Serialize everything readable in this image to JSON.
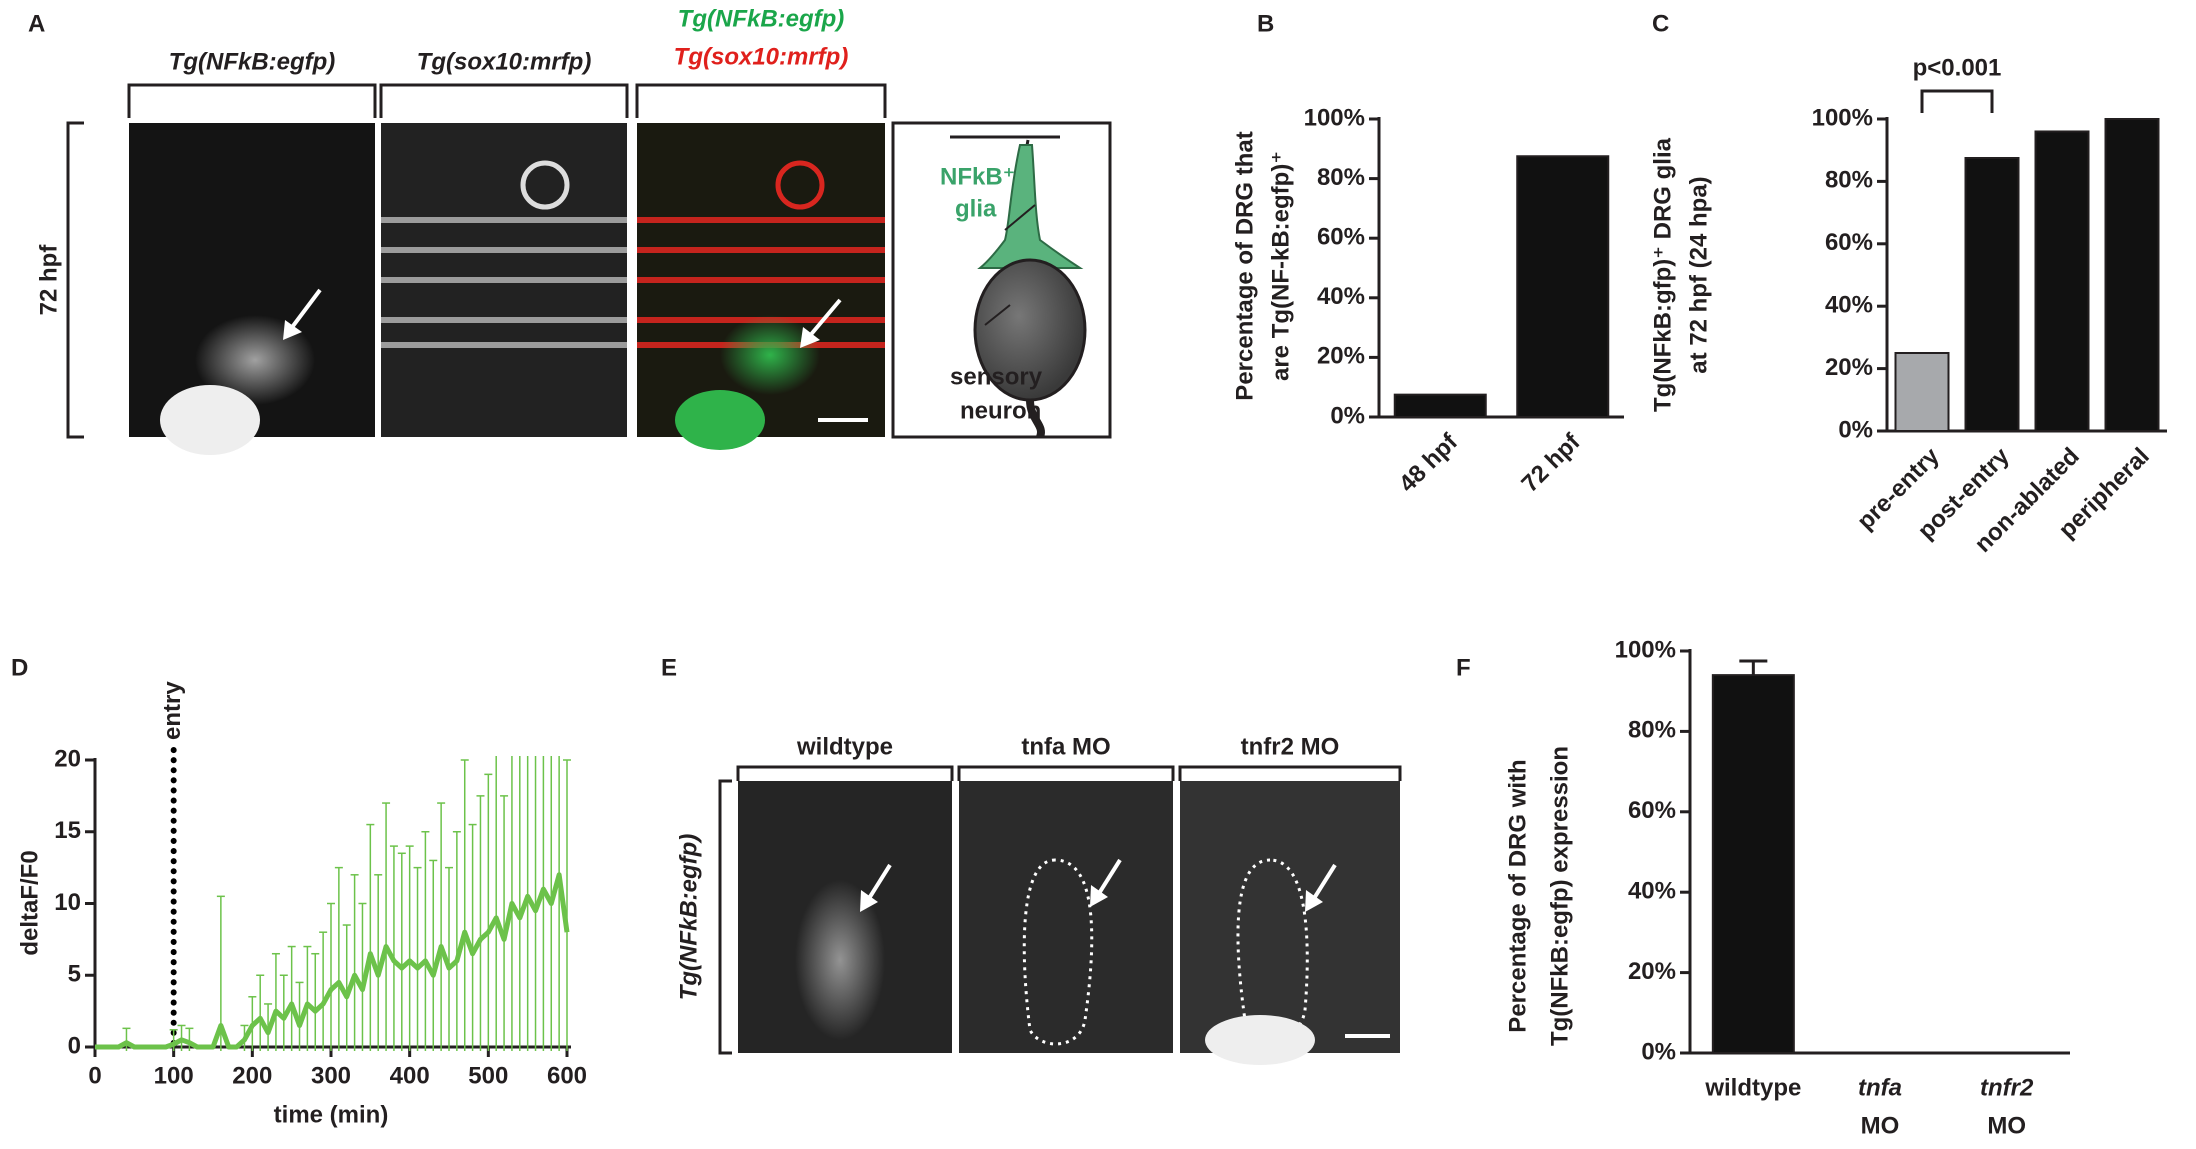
{
  "figure_a": {
    "label": "A",
    "headers": [
      "Tg(NFkB:egfp)",
      "Tg(sox10:mrfp)"
    ],
    "merge_header": [
      "Tg(NFkB:egfp)",
      "Tg(sox10:mrfp)"
    ],
    "row_label": "72 hpf",
    "glia_label": [
      "NFkB⁺",
      "glia"
    ],
    "neuron_label": [
      "sensory",
      "neuron"
    ]
  },
  "figure_e": {
    "label": "E",
    "headers": [
      "wildtype",
      "tnfa MO",
      "tnfr2 MO"
    ],
    "row_label": "Tg(NFkB:egfp)"
  },
  "chart_data": [
    {
      "panel": "B",
      "type": "bar",
      "ylabel": [
        "Percentage of DRG that",
        "are Tg(NF-kB:egfp)⁺"
      ],
      "categories": [
        "48 hpf",
        "72 hpf"
      ],
      "values": [
        7.5,
        87.5
      ],
      "color": "#111111",
      "ylim": [
        0,
        100
      ],
      "yticks": [
        {
          "value": 0,
          "label": "0%"
        },
        {
          "value": 20,
          "label": "20%"
        },
        {
          "value": 40,
          "label": "40%"
        },
        {
          "value": 60,
          "label": "60%"
        },
        {
          "value": 80,
          "label": "80%"
        },
        {
          "value": 100,
          "label": "100%"
        }
      ]
    },
    {
      "panel": "C",
      "type": "bar",
      "ylabel": [
        "Tg(NFkB:gfp)⁺ DRG glia",
        "at 72 hpf (24 hpa)"
      ],
      "categories": [
        "pre-entry",
        "post-entry",
        "non-ablated",
        "peripheral"
      ],
      "values": [
        25,
        87.5,
        96,
        100
      ],
      "colors": [
        "#a7a9ac",
        "#111111",
        "#111111",
        "#111111"
      ],
      "ylim": [
        0,
        100
      ],
      "yticks": [
        {
          "value": 0,
          "label": "0%"
        },
        {
          "value": 20,
          "label": "20%"
        },
        {
          "value": 40,
          "label": "40%"
        },
        {
          "value": 60,
          "label": "60%"
        },
        {
          "value": 80,
          "label": "80%"
        },
        {
          "value": 100,
          "label": "100%"
        }
      ],
      "annotation": {
        "text": "p<0.001",
        "between": [
          0,
          1
        ]
      }
    },
    {
      "panel": "D",
      "type": "line",
      "xlabel": "time (min)",
      "ylabel": "deltaF/F0",
      "x": [
        0,
        10,
        20,
        30,
        40,
        50,
        60,
        70,
        80,
        90,
        100,
        110,
        120,
        130,
        140,
        150,
        160,
        170,
        180,
        190,
        200,
        210,
        220,
        230,
        240,
        250,
        260,
        270,
        280,
        290,
        300,
        310,
        320,
        330,
        340,
        350,
        360,
        370,
        380,
        390,
        400,
        410,
        420,
        430,
        440,
        450,
        460,
        470,
        480,
        490,
        500,
        510,
        520,
        530,
        540,
        550,
        560,
        570,
        580,
        590,
        600
      ],
      "series": [
        {
          "color": "#6cc24a",
          "values": [
            0,
            0,
            0,
            0,
            0.3,
            0,
            0,
            0,
            0,
            0,
            0.2,
            0.5,
            0.3,
            0,
            0,
            0,
            1.5,
            0,
            0,
            0.5,
            1.5,
            2,
            1,
            2.5,
            2,
            3,
            1.5,
            3,
            2.5,
            3,
            4,
            4.5,
            3.5,
            5,
            4,
            6.5,
            5,
            7,
            6,
            5.5,
            6,
            5.5,
            6,
            5,
            7,
            5.5,
            6,
            8,
            6.5,
            7.5,
            8,
            9,
            7.5,
            10,
            9,
            10.5,
            9.5,
            11,
            10,
            12,
            8
          ],
          "errors": [
            0,
            0,
            0,
            0,
            1,
            0,
            0,
            0,
            0,
            0,
            1,
            1,
            1,
            0,
            0,
            0,
            9,
            0,
            0,
            1,
            2,
            3,
            2,
            4,
            3,
            4,
            3,
            4,
            4,
            5,
            6,
            8,
            5,
            7,
            6,
            9,
            7,
            10,
            8,
            8,
            8,
            7,
            9,
            8,
            10,
            7,
            9,
            12,
            9,
            10,
            11,
            13,
            10,
            14,
            12,
            13,
            12,
            15,
            13,
            14,
            12
          ]
        }
      ],
      "xlim": [
        0,
        600
      ],
      "ylim": [
        0,
        20
      ],
      "xticks": [
        0,
        100,
        200,
        300,
        400,
        500,
        600
      ],
      "yticks": [
        0,
        5,
        10,
        15,
        20
      ],
      "vline": {
        "x": 100,
        "label": "entry"
      }
    },
    {
      "panel": "F",
      "type": "bar",
      "ylabel": [
        "Percentage of DRG with",
        "Tg(NFkB:egfp) expression"
      ],
      "categories": [
        [
          "wildtype"
        ],
        [
          "tnfa",
          "MO"
        ],
        [
          "tnfr2",
          "MO"
        ]
      ],
      "values": [
        94,
        0,
        0
      ],
      "errors": [
        3.5,
        0,
        0
      ],
      "color": "#111111",
      "ylim": [
        0,
        100
      ],
      "yticks": [
        {
          "value": 0,
          "label": "0%"
        },
        {
          "value": 20,
          "label": "20%"
        },
        {
          "value": 40,
          "label": "40%"
        },
        {
          "value": 60,
          "label": "60%"
        },
        {
          "value": 80,
          "label": "80%"
        },
        {
          "value": 100,
          "label": "100%"
        }
      ]
    }
  ]
}
